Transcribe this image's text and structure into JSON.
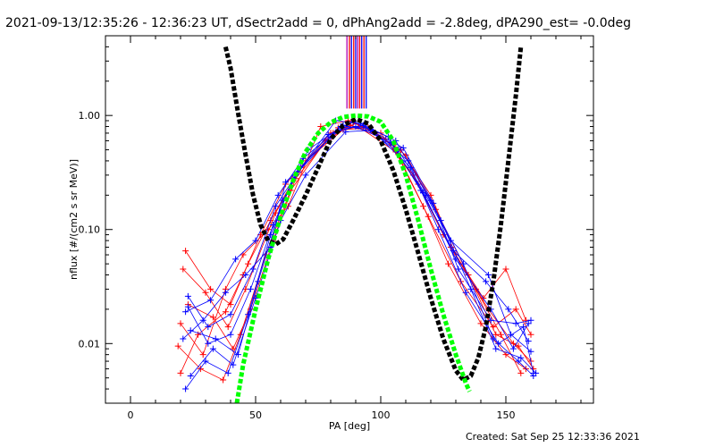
{
  "header": {
    "title": "2021-09-13/12:35:26 - 12:36:23 UT, dSectr2add = 0, dPhAng2add = -2.8deg, dPA290_est= -0.0deg"
  },
  "footer": {
    "created": "Created: Sat Sep 25 12:33:36 2021"
  },
  "colors": {
    "red": "#ff0000",
    "blue": "#0000ff",
    "black": "#000000",
    "green": "#00ff00",
    "purple": "#b000b0"
  },
  "chart_data": {
    "type": "line",
    "title": "",
    "xlabel": "PA [deg]",
    "ylabel": "nflux [#/(cm2 s sr MeV)]",
    "xlim": [
      -10,
      185
    ],
    "ylim": [
      0.003,
      5.0
    ],
    "yscale": "log",
    "grid": false,
    "xticks": [
      {
        "v": 0,
        "label": "0"
      },
      {
        "v": 50,
        "label": "50"
      },
      {
        "v": 100,
        "label": "100"
      },
      {
        "v": 150,
        "label": "150"
      }
    ],
    "yticks": [
      {
        "v": 0.01,
        "label": "0.01"
      },
      {
        "v": 0.1,
        "label": "0.10"
      },
      {
        "v": 1.0,
        "label": "1.00"
      }
    ],
    "series": [
      {
        "color": "red",
        "values": [
          [
            20,
            0.0055
          ],
          [
            27,
            0.012
          ],
          [
            38,
            0.019
          ],
          [
            45,
            0.04
          ],
          [
            52,
            0.09
          ],
          [
            62,
            0.25
          ],
          [
            80,
            0.7
          ],
          [
            90,
            0.85
          ],
          [
            105,
            0.55
          ],
          [
            117,
            0.16
          ],
          [
            127,
            0.05
          ],
          [
            140,
            0.015
          ],
          [
            150,
            0.008
          ],
          [
            158,
            0.006
          ]
        ]
      },
      {
        "color": "red",
        "values": [
          [
            22,
            0.065
          ],
          [
            32,
            0.03
          ],
          [
            40,
            0.022
          ],
          [
            47,
            0.05
          ],
          [
            56,
            0.12
          ],
          [
            68,
            0.35
          ],
          [
            83,
            0.78
          ],
          [
            93,
            0.8
          ],
          [
            108,
            0.5
          ],
          [
            120,
            0.2
          ],
          [
            130,
            0.06
          ],
          [
            143,
            0.02
          ],
          [
            153,
            0.01
          ],
          [
            160,
            0.007
          ]
        ]
      },
      {
        "color": "red",
        "values": [
          [
            21,
            0.045
          ],
          [
            30,
            0.028
          ],
          [
            39,
            0.014
          ],
          [
            46,
            0.03
          ],
          [
            58,
            0.14
          ],
          [
            70,
            0.4
          ],
          [
            85,
            0.75
          ],
          [
            95,
            0.78
          ],
          [
            110,
            0.45
          ],
          [
            122,
            0.15
          ],
          [
            135,
            0.04
          ],
          [
            146,
            0.012
          ],
          [
            155,
            0.0095
          ],
          [
            161,
            0.006
          ]
        ]
      },
      {
        "color": "red",
        "values": [
          [
            19,
            0.0095
          ],
          [
            28,
            0.006
          ],
          [
            37,
            0.0048
          ],
          [
            44,
            0.012
          ],
          [
            54,
            0.06
          ],
          [
            64,
            0.22
          ],
          [
            78,
            0.6
          ],
          [
            88,
            0.82
          ],
          [
            102,
            0.62
          ],
          [
            115,
            0.25
          ],
          [
            128,
            0.07
          ],
          [
            141,
            0.025
          ],
          [
            150,
            0.045
          ],
          [
            158,
            0.016
          ]
        ]
      },
      {
        "color": "red",
        "values": [
          [
            23,
            0.022
          ],
          [
            33,
            0.017
          ],
          [
            41,
            0.009
          ],
          [
            48,
            0.02
          ],
          [
            57,
            0.08
          ],
          [
            66,
            0.28
          ],
          [
            81,
            0.7
          ],
          [
            91,
            0.8
          ],
          [
            106,
            0.48
          ],
          [
            119,
            0.13
          ],
          [
            132,
            0.035
          ],
          [
            145,
            0.014
          ],
          [
            154,
            0.02
          ],
          [
            160,
            0.012
          ]
        ]
      },
      {
        "color": "red",
        "values": [
          [
            20,
            0.015
          ],
          [
            29,
            0.008
          ],
          [
            38,
            0.03
          ],
          [
            45,
            0.06
          ],
          [
            55,
            0.1
          ],
          [
            63,
            0.16
          ],
          [
            76,
            0.8
          ],
          [
            87,
            0.9
          ],
          [
            100,
            0.7
          ],
          [
            113,
            0.3
          ],
          [
            125,
            0.09
          ],
          [
            138,
            0.03
          ],
          [
            148,
            0.012
          ],
          [
            156,
            0.0055
          ]
        ]
      },
      {
        "color": "blue",
        "values": [
          [
            22,
            0.004
          ],
          [
            30,
            0.007
          ],
          [
            39,
            0.0055
          ],
          [
            47,
            0.018
          ],
          [
            56,
            0.09
          ],
          [
            65,
            0.28
          ],
          [
            82,
            0.9
          ],
          [
            92,
            0.85
          ],
          [
            106,
            0.6
          ],
          [
            120,
            0.18
          ],
          [
            133,
            0.05
          ],
          [
            145,
            0.011
          ],
          [
            155,
            0.007
          ],
          [
            161,
            0.0052
          ]
        ]
      },
      {
        "color": "blue",
        "values": [
          [
            23,
            0.026
          ],
          [
            31,
            0.014
          ],
          [
            40,
            0.018
          ],
          [
            49,
            0.045
          ],
          [
            58,
            0.16
          ],
          [
            67,
            0.32
          ],
          [
            84,
            0.8
          ],
          [
            94,
            0.78
          ],
          [
            109,
            0.52
          ],
          [
            121,
            0.17
          ],
          [
            131,
            0.045
          ],
          [
            144,
            0.016
          ],
          [
            154,
            0.015
          ],
          [
            160,
            0.016
          ]
        ]
      },
      {
        "color": "blue",
        "values": [
          [
            24,
            0.0052
          ],
          [
            33,
            0.009
          ],
          [
            41,
            0.0065
          ],
          [
            50,
            0.025
          ],
          [
            60,
            0.12
          ],
          [
            70,
            0.3
          ],
          [
            86,
            0.72
          ],
          [
            96,
            0.74
          ],
          [
            111,
            0.4
          ],
          [
            124,
            0.12
          ],
          [
            136,
            0.03
          ],
          [
            146,
            0.009
          ],
          [
            156,
            0.0075
          ],
          [
            162,
            0.0055
          ]
        ]
      },
      {
        "color": "blue",
        "values": [
          [
            21,
            0.011
          ],
          [
            29,
            0.016
          ],
          [
            38,
            0.028
          ],
          [
            46,
            0.04
          ],
          [
            56,
            0.07
          ],
          [
            62,
            0.26
          ],
          [
            80,
            0.65
          ],
          [
            89,
            0.88
          ],
          [
            103,
            0.65
          ],
          [
            116,
            0.22
          ],
          [
            129,
            0.065
          ],
          [
            142,
            0.035
          ],
          [
            151,
            0.02
          ],
          [
            159,
            0.0105
          ]
        ]
      },
      {
        "color": "blue",
        "values": [
          [
            22,
            0.019
          ],
          [
            32,
            0.024
          ],
          [
            42,
            0.055
          ],
          [
            50,
            0.08
          ],
          [
            59,
            0.2
          ],
          [
            69,
            0.42
          ],
          [
            83,
            0.75
          ],
          [
            93,
            0.82
          ],
          [
            107,
            0.5
          ],
          [
            118,
            0.2
          ],
          [
            128,
            0.08
          ],
          [
            143,
            0.04
          ],
          [
            152,
            0.012
          ],
          [
            160,
            0.0085
          ]
        ]
      },
      {
        "color": "blue",
        "values": [
          [
            24,
            0.013
          ],
          [
            34,
            0.011
          ],
          [
            43,
            0.008
          ],
          [
            51,
            0.035
          ],
          [
            61,
            0.18
          ],
          [
            71,
            0.5
          ],
          [
            85,
            0.82
          ],
          [
            97,
            0.72
          ],
          [
            112,
            0.35
          ],
          [
            123,
            0.1
          ],
          [
            134,
            0.028
          ],
          [
            147,
            0.01
          ],
          [
            157,
            0.014
          ],
          [
            161,
            0.0055
          ]
        ]
      },
      {
        "color": "blue",
        "values": [
          [
            23,
            0.021
          ],
          [
            31,
            0.01
          ],
          [
            40,
            0.012
          ],
          [
            48,
            0.03
          ],
          [
            57,
            0.11
          ],
          [
            66,
            0.3
          ],
          [
            79,
            0.68
          ],
          [
            90,
            0.8
          ],
          [
            104,
            0.58
          ],
          [
            117,
            0.21
          ],
          [
            130,
            0.055
          ],
          [
            144,
            0.02
          ],
          [
            153,
            0.009
          ],
          [
            159,
            0.015
          ]
        ]
      }
    ],
    "fits": [
      {
        "name": "",
        "color": "black",
        "values": [
          [
            38,
            4.0
          ],
          [
            40,
            2.6
          ],
          [
            43,
            1.05
          ],
          [
            46,
            0.45
          ],
          [
            49,
            0.2
          ],
          [
            52,
            0.11
          ],
          [
            55,
            0.08
          ],
          [
            58,
            0.074
          ],
          [
            61,
            0.082
          ],
          [
            65,
            0.12
          ],
          [
            70,
            0.2
          ],
          [
            75,
            0.35
          ],
          [
            80,
            0.62
          ],
          [
            85,
            0.82
          ],
          [
            90,
            0.93
          ],
          [
            95,
            0.85
          ],
          [
            100,
            0.6
          ],
          [
            105,
            0.33
          ],
          [
            110,
            0.15
          ],
          [
            115,
            0.062
          ],
          [
            120,
            0.025
          ],
          [
            125,
            0.011
          ],
          [
            130,
            0.0058
          ],
          [
            133,
            0.0048
          ],
          [
            136,
            0.0052
          ],
          [
            139,
            0.0075
          ],
          [
            142,
            0.014
          ],
          [
            145,
            0.035
          ],
          [
            148,
            0.11
          ],
          [
            151,
            0.4
          ],
          [
            154,
            1.5
          ],
          [
            156,
            4.0
          ]
        ]
      },
      {
        "name": "",
        "color": "green",
        "values": [
          [
            42.5,
            0.003
          ],
          [
            45,
            0.0065
          ],
          [
            50,
            0.02
          ],
          [
            55,
            0.055
          ],
          [
            60,
            0.13
          ],
          [
            65,
            0.27
          ],
          [
            70,
            0.48
          ],
          [
            75,
            0.7
          ],
          [
            80,
            0.87
          ],
          [
            85,
            0.97
          ],
          [
            90,
            1.0
          ],
          [
            95,
            0.98
          ],
          [
            100,
            0.88
          ],
          [
            105,
            0.6
          ],
          [
            110,
            0.3
          ],
          [
            115,
            0.12
          ],
          [
            120,
            0.045
          ],
          [
            125,
            0.018
          ],
          [
            130,
            0.008
          ],
          [
            134,
            0.0045
          ],
          [
            135.5,
            0.0038
          ]
        ]
      }
    ],
    "vlines": [
      {
        "x": 86.5,
        "color": "purple"
      },
      {
        "x": 87.5,
        "color": "red"
      },
      {
        "x": 88.3,
        "color": "blue"
      },
      {
        "x": 89.2,
        "color": "red"
      },
      {
        "x": 90.0,
        "color": "blue"
      },
      {
        "x": 90.8,
        "color": "purple"
      },
      {
        "x": 91.6,
        "color": "red"
      },
      {
        "x": 92.4,
        "color": "blue"
      },
      {
        "x": 93.3,
        "color": "red"
      },
      {
        "x": 94.2,
        "color": "blue"
      }
    ],
    "vline_range": [
      1.15,
      5.0
    ]
  }
}
